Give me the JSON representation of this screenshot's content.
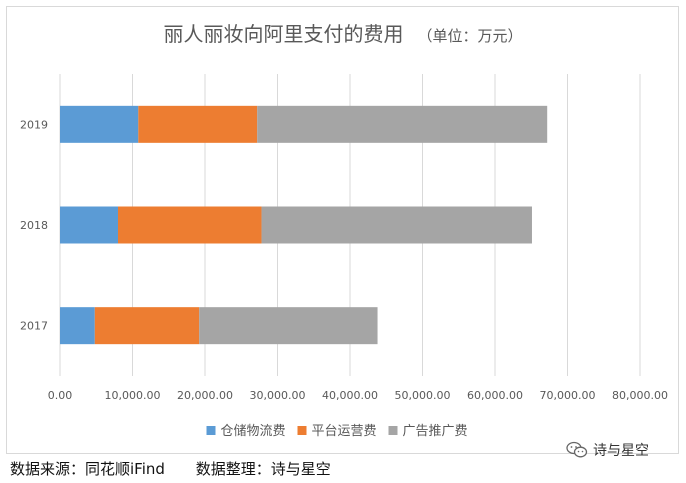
{
  "chart_data": {
    "type": "bar",
    "orientation": "horizontal",
    "stacked": true,
    "title": "丽人丽妆向阿里支付的费用",
    "title_unit": "（单位：万元）",
    "categories": [
      "2017",
      "2018",
      "2019"
    ],
    "series": [
      {
        "name": "仓储物流费",
        "color": "#5b9bd5",
        "values": [
          4800,
          8000,
          10800
        ]
      },
      {
        "name": "平台运营费",
        "color": "#ed7d31",
        "values": [
          14400,
          19800,
          16400
        ]
      },
      {
        "name": "广告推广费",
        "color": "#a5a5a5",
        "values": [
          24600,
          37300,
          40000
        ]
      }
    ],
    "xlim": [
      0,
      80000
    ],
    "x_ticks": [
      "0.00",
      "10,000.00",
      "20,000.00",
      "30,000.00",
      "40,000.00",
      "50,000.00",
      "60,000.00",
      "70,000.00",
      "80,000.00"
    ],
    "grid": true,
    "legend_position": "bottom"
  },
  "footer": {
    "source": "数据来源：同花顺iFind",
    "organizer": "数据整理：诗与星空"
  },
  "watermark": {
    "text": "诗与星空",
    "icon": "wechat-icon"
  }
}
